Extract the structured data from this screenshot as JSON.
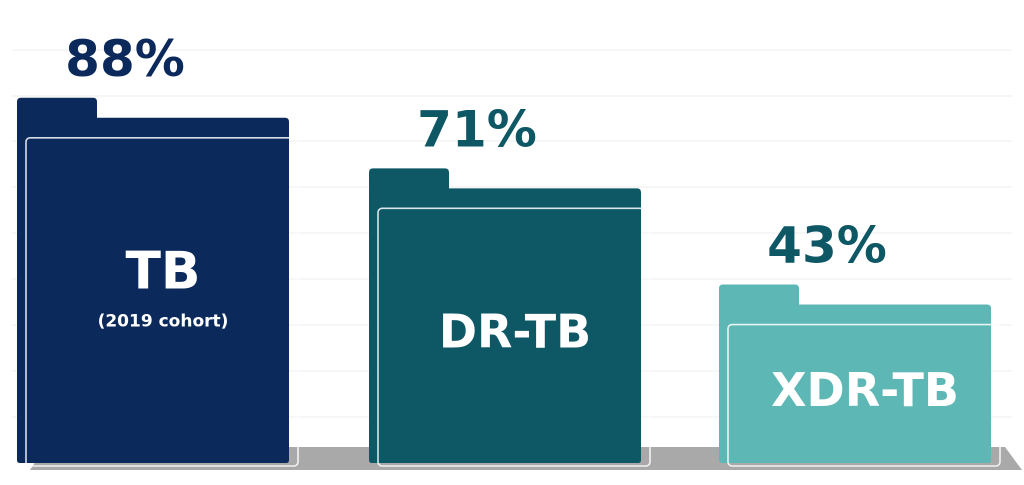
{
  "chart_data": {
    "type": "bar",
    "title": "",
    "xlabel": "",
    "ylabel": "",
    "ylim": [
      0,
      100
    ],
    "grid": true,
    "categories": [
      "TB",
      "DR-TB",
      "XDR-TB"
    ],
    "category_notes": [
      "(2019 cohort)",
      "",
      ""
    ],
    "values": [
      88,
      71,
      43
    ],
    "value_labels": [
      "88%",
      "71%",
      "43%"
    ],
    "colors": [
      "#0b2a5b",
      "#0e5765",
      "#5db7b4"
    ]
  }
}
